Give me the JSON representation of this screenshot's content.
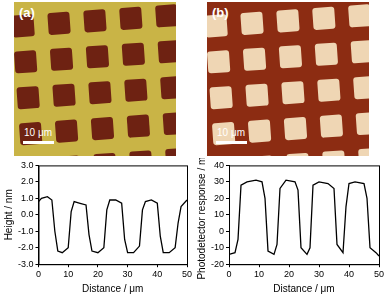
{
  "panels": [
    {
      "label": "(a)",
      "scale_bar": "10 μm"
    },
    {
      "label": "(b)",
      "scale_bar": "10 μm"
    }
  ],
  "chart_data": [
    {
      "type": "line",
      "color": "#000000",
      "grid": false,
      "xlabel": "Distance / μm",
      "ylabel": "Height / nm",
      "x": [
        0,
        1,
        3,
        4.5,
        5.5,
        6.5,
        8,
        10,
        11,
        12,
        14,
        16,
        17,
        18,
        20,
        22,
        23,
        24,
        26,
        28,
        29,
        30,
        32,
        34,
        35,
        36,
        38,
        40,
        41,
        42,
        44,
        46,
        47,
        48,
        50
      ],
      "values": [
        0.8,
        1.0,
        1.1,
        0.9,
        -1.0,
        -2.2,
        -2.3,
        -2.0,
        0.2,
        0.8,
        0.7,
        0.6,
        -1.2,
        -2.2,
        -2.3,
        -2.0,
        0.3,
        0.9,
        0.9,
        0.7,
        -1.5,
        -2.3,
        -2.3,
        -1.9,
        0.3,
        0.8,
        0.9,
        0.7,
        -1.3,
        -2.3,
        -2.3,
        -2.0,
        -0.5,
        0.5,
        0.9
      ],
      "xlim": [
        0,
        50
      ],
      "xticks": [
        0,
        10,
        20,
        30,
        40,
        50
      ],
      "ylim": [
        -3,
        3
      ],
      "yticks": [
        {
          "value": -3,
          "label": "-3.0"
        },
        {
          "value": -2,
          "label": "-2.0"
        },
        {
          "value": -1,
          "label": "-1.0"
        },
        {
          "value": 0,
          "label": "0.0"
        },
        {
          "value": 1,
          "label": "1.0"
        },
        {
          "value": 2,
          "label": "2.0"
        },
        {
          "value": 3,
          "label": "3.0"
        }
      ]
    },
    {
      "type": "line",
      "color": "#000000",
      "grid": false,
      "xlabel": "Distance / μm",
      "ylabel": "Photodetector response / mV",
      "x": [
        0,
        2,
        3,
        4,
        6,
        9,
        11,
        12,
        13,
        15,
        16,
        17,
        19,
        22,
        23,
        24,
        26,
        27,
        28,
        30,
        33,
        35,
        36,
        38,
        39,
        40,
        42,
        45,
        46,
        47,
        49,
        50
      ],
      "values": [
        -14,
        -13,
        -5,
        28,
        30,
        31,
        30,
        20,
        -12,
        -14,
        -8,
        26,
        31,
        30,
        25,
        -10,
        -14,
        -10,
        28,
        30,
        29,
        26,
        -8,
        -13,
        15,
        29,
        30,
        29,
        20,
        -10,
        -13,
        -15
      ],
      "xlim": [
        0,
        50
      ],
      "xticks": [
        0,
        10,
        20,
        30,
        40,
        50
      ],
      "ylim": [
        -20,
        40
      ],
      "yticks": [
        -20,
        -10,
        0,
        10,
        20,
        30,
        40
      ]
    }
  ]
}
